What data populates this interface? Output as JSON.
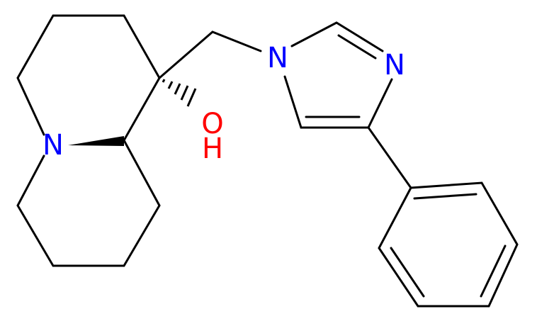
{
  "atoms": [
    "N",
    "O",
    "H",
    "N",
    "N"
  ]
}
